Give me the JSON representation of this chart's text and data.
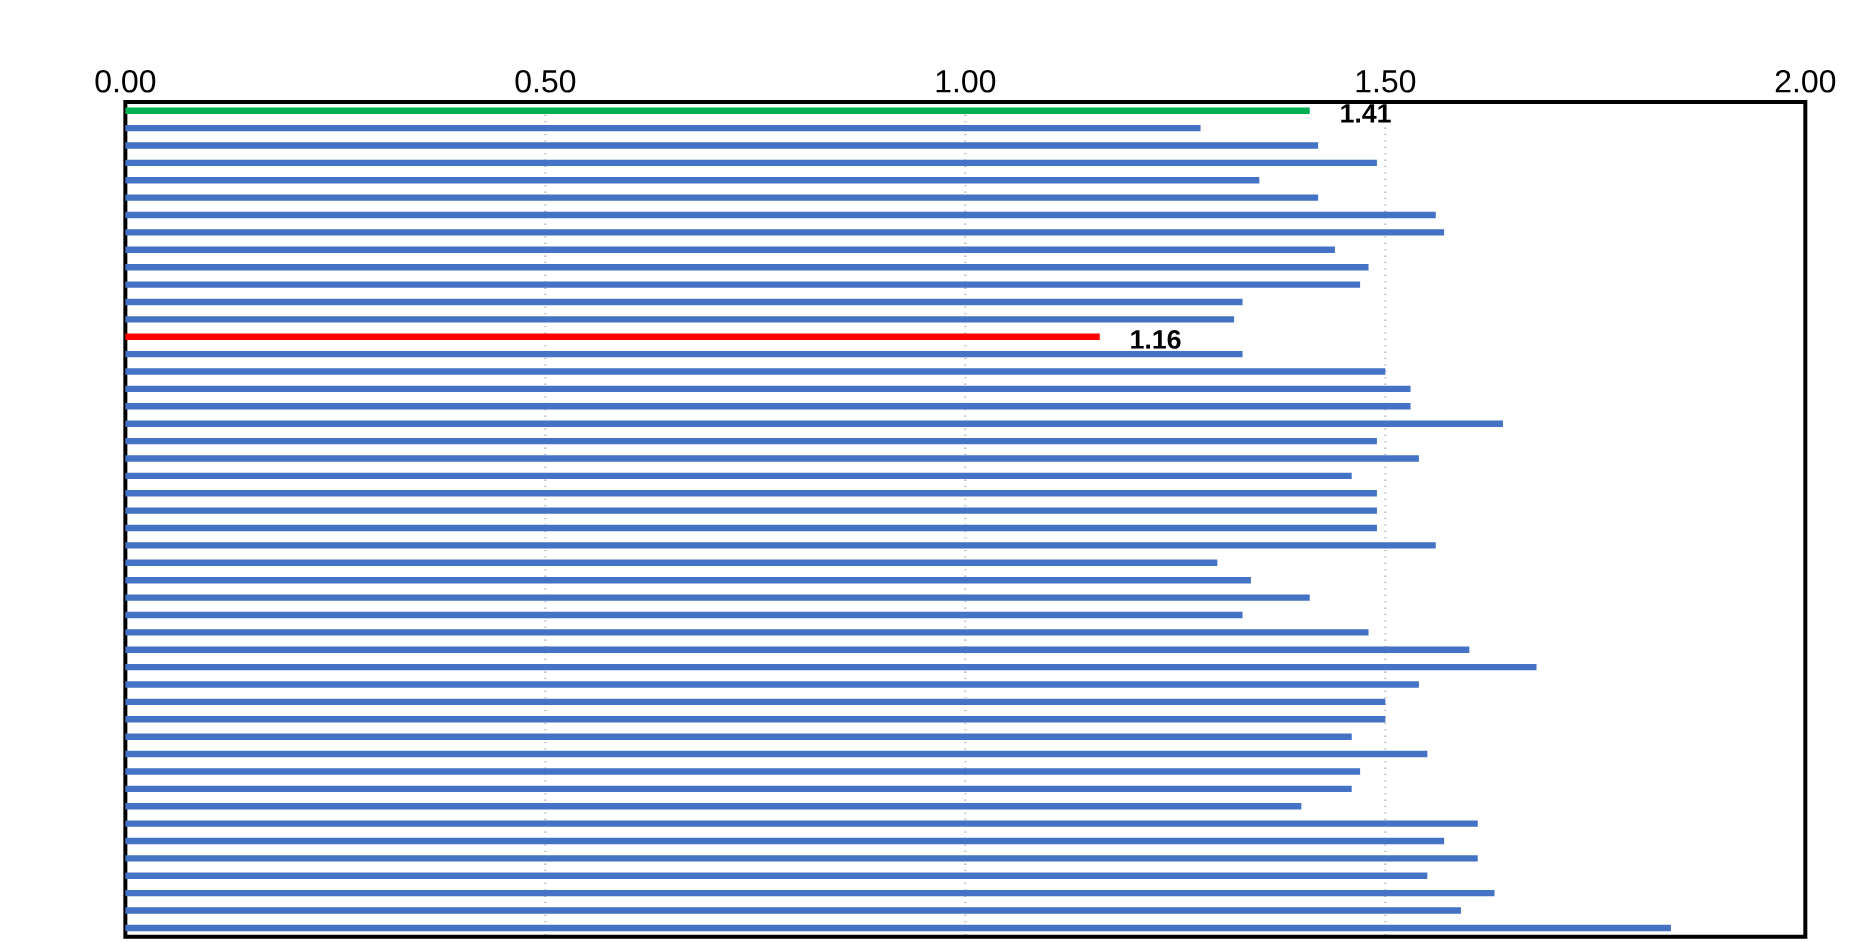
{
  "chart_data": {
    "type": "bar",
    "orientation": "horizontal",
    "categories": [
      null,
      null,
      null,
      null,
      null,
      null,
      null,
      null,
      null,
      null,
      null,
      null,
      null,
      null,
      null,
      null,
      null,
      null,
      null,
      null,
      null,
      null,
      null,
      null,
      null,
      null,
      null,
      null,
      null,
      null,
      null,
      null,
      null,
      null,
      null,
      null,
      null,
      null,
      null,
      null,
      null,
      null,
      null,
      null,
      null,
      null,
      null,
      null
    ],
    "values": [
      1.41,
      1.28,
      1.42,
      1.49,
      1.35,
      1.42,
      1.56,
      1.57,
      1.44,
      1.48,
      1.47,
      1.33,
      1.32,
      1.16,
      1.33,
      1.5,
      1.53,
      1.53,
      1.64,
      1.49,
      1.54,
      1.46,
      1.49,
      1.49,
      1.49,
      1.56,
      1.3,
      1.34,
      1.41,
      1.33,
      1.48,
      1.6,
      1.68,
      1.54,
      1.5,
      1.5,
      1.46,
      1.55,
      1.47,
      1.46,
      1.4,
      1.61,
      1.57,
      1.61,
      1.55,
      1.63,
      1.59,
      1.84
    ],
    "colors": [
      "#00b050",
      "#4472c4",
      "#4472c4",
      "#4472c4",
      "#4472c4",
      "#4472c4",
      "#4472c4",
      "#4472c4",
      "#4472c4",
      "#4472c4",
      "#4472c4",
      "#4472c4",
      "#4472c4",
      "#ff0000",
      "#4472c4",
      "#4472c4",
      "#4472c4",
      "#4472c4",
      "#4472c4",
      "#4472c4",
      "#4472c4",
      "#4472c4",
      "#4472c4",
      "#4472c4",
      "#4472c4",
      "#4472c4",
      "#4472c4",
      "#4472c4",
      "#4472c4",
      "#4472c4",
      "#4472c4",
      "#4472c4",
      "#4472c4",
      "#4472c4",
      "#4472c4",
      "#4472c4",
      "#4472c4",
      "#4472c4",
      "#4472c4",
      "#4472c4",
      "#4472c4",
      "#4472c4",
      "#4472c4",
      "#4472c4",
      "#4472c4",
      "#4472c4",
      "#4472c4",
      "#4472c4"
    ],
    "value_labels": [
      "1.41",
      null,
      null,
      null,
      null,
      null,
      null,
      null,
      null,
      null,
      null,
      null,
      null,
      "1.16",
      null,
      null,
      null,
      null,
      null,
      null,
      null,
      null,
      null,
      null,
      null,
      null,
      null,
      null,
      null,
      null,
      null,
      null,
      null,
      null,
      null,
      null,
      null,
      null,
      null,
      null,
      null,
      null,
      null,
      null,
      null,
      null,
      null,
      null
    ],
    "xlim": [
      0,
      2
    ],
    "xticks": [
      {
        "value": 0,
        "label": "0.00"
      },
      {
        "value": 0.5,
        "label": "0.50"
      },
      {
        "value": 1,
        "label": "1.00"
      },
      {
        "value": 1.5,
        "label": "1.50"
      },
      {
        "value": 2,
        "label": "2.00"
      }
    ],
    "grid": "x"
  }
}
